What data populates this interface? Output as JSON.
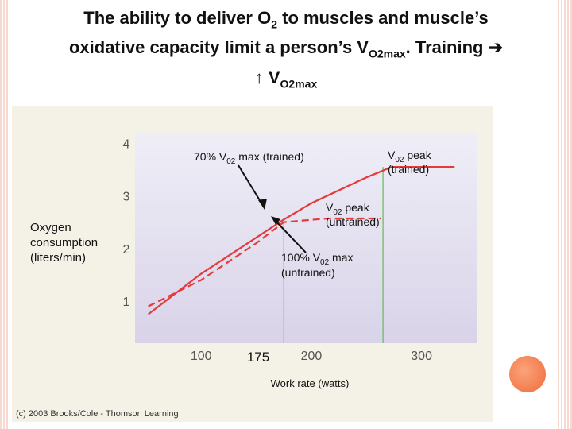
{
  "title": {
    "line1": "The ability to deliver O",
    "line1_sub": "2",
    "line1_end": " to muscles and muscle’s",
    "line2_start": "oxidative capacity limit a person’s V",
    "line2_sub": "O2max",
    "line2_end": ". Training ",
    "arrow_right": "➔",
    "line3_arrow": "↑ V",
    "line3_sub": "O2max"
  },
  "copyright": "(c) 2003 Brooks/Cole - Thomson Learning",
  "decoration": {
    "circle_color": "#f47a48"
  },
  "chart_data": {
    "type": "line",
    "xlabel": "Work rate (watts)",
    "ylabel": "Oxygen\nconsumption\n(liters/min)",
    "xlim": [
      40,
      350
    ],
    "ylim": [
      0.2,
      4.2
    ],
    "xticks": [
      100,
      200,
      300
    ],
    "yticks": [
      1,
      2,
      3,
      4
    ],
    "x_marker_label": "175",
    "series": [
      {
        "style": "solid",
        "color": "#e53a3a",
        "x": [
          52,
          100,
          175,
          200,
          250,
          273,
          330
        ],
        "y": [
          0.75,
          1.52,
          2.55,
          2.86,
          3.35,
          3.55,
          3.55
        ]
      },
      {
        "style": "dashed",
        "color": "#e53a3a",
        "x": [
          52,
          100,
          150,
          175,
          215,
          263
        ],
        "y": [
          0.9,
          1.4,
          2.1,
          2.5,
          2.57,
          2.57
        ]
      }
    ],
    "vlines": [
      {
        "x": 175,
        "y0": 0.2,
        "y1": 2.55,
        "color": "#4fb8e6"
      },
      {
        "x": 265,
        "y0": 0.2,
        "y1": 3.55,
        "color": "#5fbd55"
      }
    ],
    "annotations": [
      {
        "id": "trained70",
        "text": "70% V",
        "sub": "02",
        "rest": " max (trained)"
      },
      {
        "id": "peak_trained",
        "line1_pre": "V",
        "line1_sub": "02",
        "line1_rest": " peak",
        "line2": "(trained)"
      },
      {
        "id": "peak_untrained",
        "line1_pre": "V",
        "line1_sub": "02",
        "line1_rest": " peak",
        "line2": "(untrained)"
      },
      {
        "id": "untrained100",
        "line1_pre": "100% V",
        "line1_sub": "02",
        "line1_rest": " max",
        "line2": "(untrained)"
      }
    ]
  }
}
